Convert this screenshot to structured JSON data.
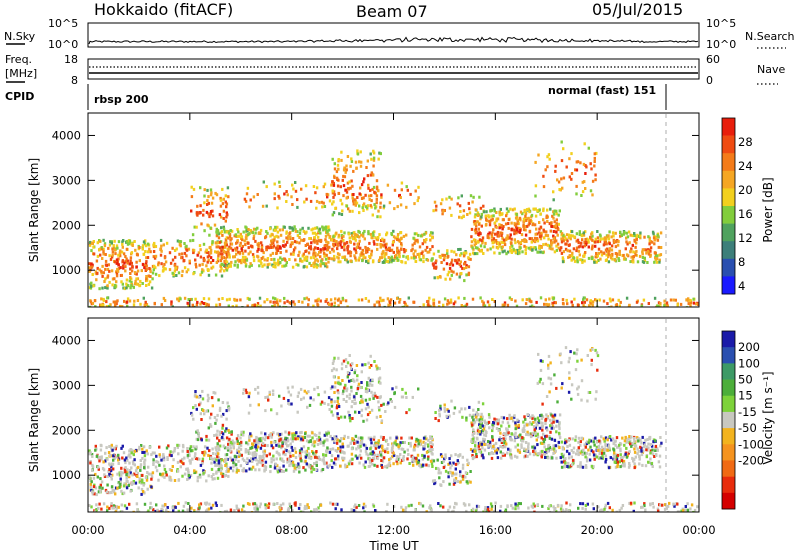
{
  "header": {
    "station": "Hokkaido (fitACF)",
    "beam": "Beam 07",
    "date": "05/Jul/2015"
  },
  "noise_panel": {
    "left_label": "N.Sky",
    "right_label": "N.Search",
    "left_ticks": [
      "10^5",
      "10^0"
    ],
    "right_ticks": [
      "10^5",
      "10^0"
    ]
  },
  "freq_panel": {
    "left_label_line1": "Freq.",
    "left_label_line2": "[MHz]",
    "left_ticks": [
      "18",
      "8"
    ],
    "right_label": "Nave",
    "right_ticks": [
      "60",
      "0"
    ]
  },
  "cpid_panel": {
    "label": "CPID",
    "mode_left": "rbsp 200",
    "mode_right": "normal (fast) 151"
  },
  "chart_data": [
    {
      "type": "heatmap",
      "name": "power-panel",
      "xlabel": "",
      "ylabel": "Slant Range [km]",
      "ylim": [
        180,
        4500
      ],
      "yticks": [
        "1000",
        "2000",
        "3000",
        "4000"
      ],
      "colorbar": {
        "label": "Power [dB]",
        "ticks": [
          "4",
          "8",
          "12",
          "16",
          "20",
          "24",
          "28"
        ],
        "colors": [
          "#1a1aff",
          "#2a4fb0",
          "#3d7f7a",
          "#4fa25e",
          "#82cd3c",
          "#f2d01e",
          "#f5a623",
          "#f47b19",
          "#ef4b12",
          "#e81e0c"
        ]
      }
    },
    {
      "type": "heatmap",
      "name": "velocity-panel",
      "xlabel": "Time UT",
      "ylabel": "Slant Range [km]",
      "ylim": [
        180,
        4500
      ],
      "xticks": [
        "00:00",
        "04:00",
        "08:00",
        "12:00",
        "16:00",
        "20:00",
        "00:00"
      ],
      "yticks": [
        "1000",
        "2000",
        "3000",
        "4000"
      ],
      "colorbar": {
        "label": "Velocity [m s⁻¹]",
        "ticks": [
          "200",
          "100",
          "50",
          "15",
          "-15",
          "-50",
          "-100",
          "-200"
        ],
        "colors": [
          "#1a1aa8",
          "#2a4fb0",
          "#3d9a66",
          "#4cae3a",
          "#7dd23a",
          "#c8c8c0",
          "#f2b31e",
          "#f5931e",
          "#f06a14",
          "#e82c0c",
          "#d40000"
        ]
      }
    }
  ]
}
